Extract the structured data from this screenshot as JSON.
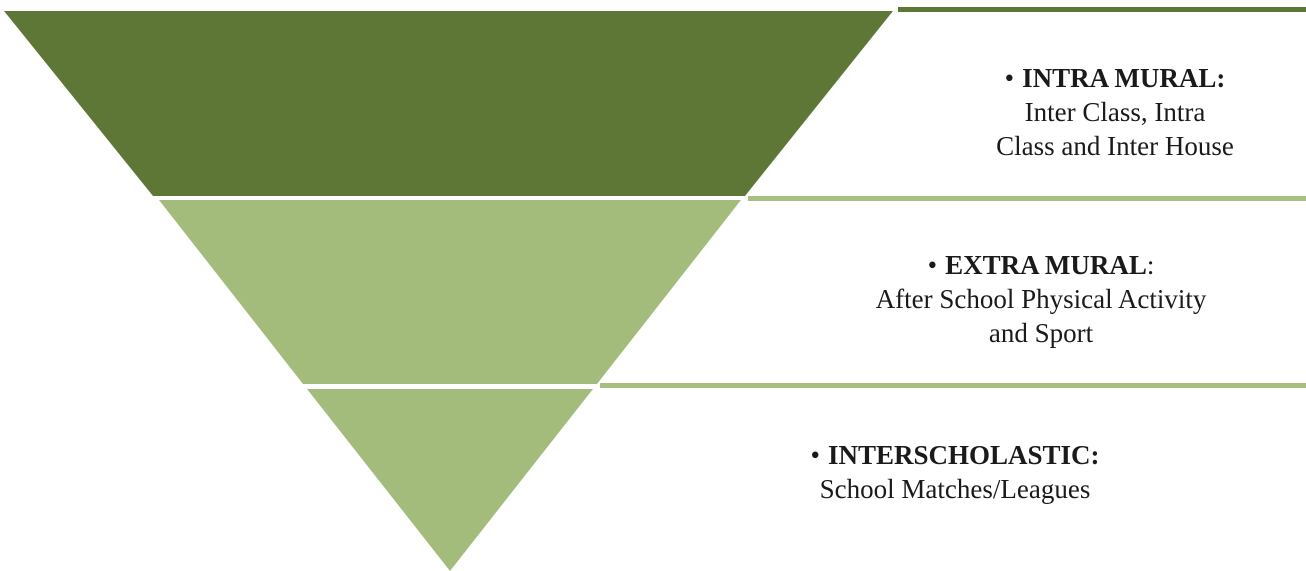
{
  "colors": {
    "top_band": "#5f7736",
    "middle_band": "#a3bb7b",
    "bottom_band": "#a3bb7b",
    "divider_line": "#a7bf7f",
    "top_line": "#5f7736",
    "text": "#1a1a1a"
  },
  "levels": [
    {
      "bullet": "•",
      "heading": "INTRA MURAL:",
      "heading_suffix": "",
      "description_lines": [
        "Inter Class, Intra",
        "Class and Inter House"
      ]
    },
    {
      "bullet": "•",
      "heading": "EXTRA MURAL",
      "heading_suffix": ":",
      "description_lines": [
        "After School Physical Activity",
        "and Sport"
      ]
    },
    {
      "bullet": "•",
      "heading": "INTERSCHOLASTIC:",
      "heading_suffix": "",
      "description_lines": [
        "School Matches/Leagues"
      ]
    }
  ]
}
